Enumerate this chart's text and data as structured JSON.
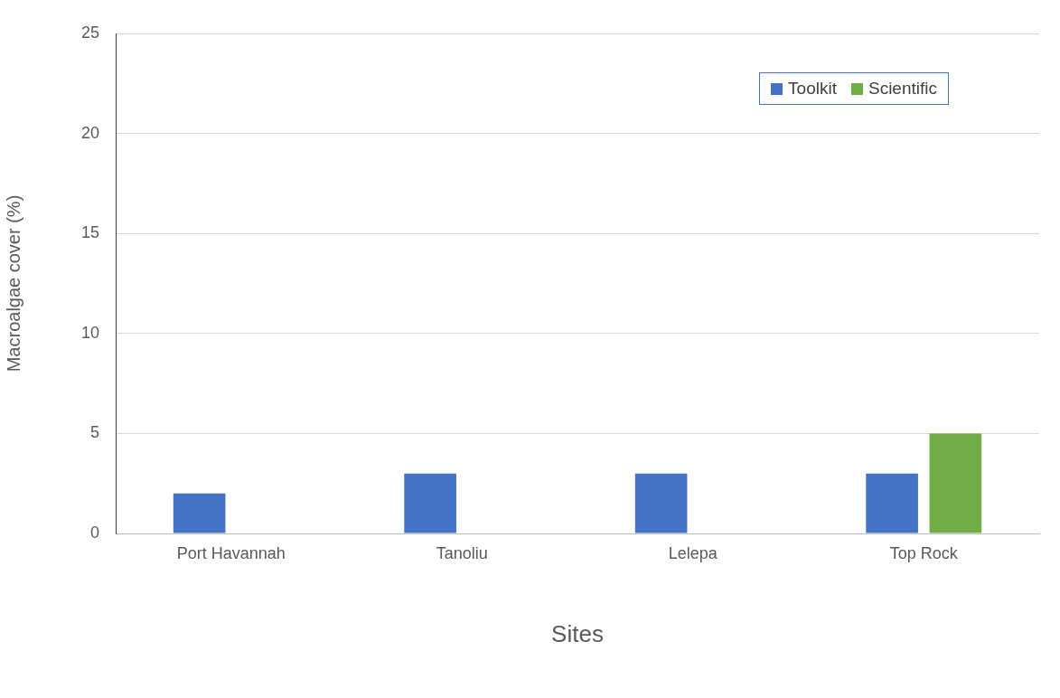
{
  "chart_data": {
    "type": "bar",
    "xlabel": "Sites",
    "ylabel": "Macroalgae cover (%)",
    "categories": [
      "Port Havannah",
      "Tanoliu",
      "Lelepa",
      "Top Rock"
    ],
    "series": [
      {
        "name": "Toolkit",
        "color": "#4472c4",
        "values": [
          2,
          3,
          3,
          3
        ]
      },
      {
        "name": "Scientific",
        "color": "#70ad47",
        "values": [
          0,
          0,
          0,
          5
        ]
      }
    ],
    "ylim": [
      0,
      25
    ],
    "yticks": [
      0,
      5,
      10,
      15,
      20,
      25
    ],
    "grid": "y",
    "legend": "top right"
  }
}
